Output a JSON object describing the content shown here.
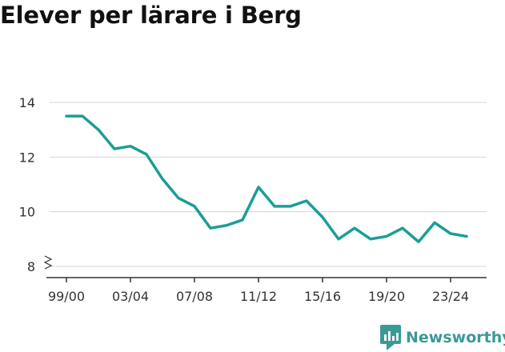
{
  "chart_data": {
    "type": "line",
    "title": "Elever per lärare i Berg",
    "xlabel": "",
    "ylabel": "",
    "x": [
      "99/00",
      "00/01",
      "01/02",
      "02/03",
      "03/04",
      "04/05",
      "05/06",
      "06/07",
      "07/08",
      "08/09",
      "09/10",
      "10/11",
      "11/12",
      "12/13",
      "13/14",
      "14/15",
      "15/16",
      "16/17",
      "17/18",
      "18/19",
      "19/20",
      "20/21",
      "21/22",
      "22/23",
      "23/24",
      "24/25"
    ],
    "x_tick_labels": [
      "99/00",
      "03/04",
      "07/08",
      "11/12",
      "15/16",
      "19/20",
      "23/24"
    ],
    "series": [
      {
        "color": "#1a9e96",
        "values": [
          13.5,
          13.5,
          13.0,
          12.3,
          12.4,
          12.1,
          11.2,
          10.5,
          10.2,
          9.4,
          9.5,
          9.7,
          10.9,
          10.2,
          10.2,
          10.4,
          9.8,
          9.0,
          9.4,
          9.0,
          9.1,
          9.4,
          8.9,
          9.6,
          9.2,
          9.1
        ]
      }
    ],
    "yticks": [
      8,
      10,
      12,
      14
    ],
    "ylim": [
      8,
      14
    ],
    "y_axis_break": true,
    "grid": true,
    "legend": "none"
  },
  "brand": {
    "name": "Newsworthy",
    "icon": "newsworthy-logo-icon",
    "color": "#3a9a96"
  }
}
